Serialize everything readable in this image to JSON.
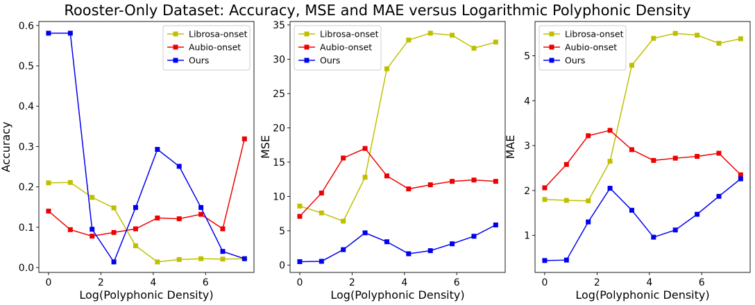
{
  "figure_title": "Rooster-Only Dataset: Accuracy, MSE and MAE versus Logarithmic Polyphonic Density",
  "colors": {
    "Librosa-onset": "#bfbf00",
    "Aubio-onset": "#ee0000",
    "Ours": "#0000ee"
  },
  "chart_data": [
    {
      "type": "line",
      "title": "",
      "xlabel": "Log(Polyphonic Density)",
      "ylabel": "Accuracy",
      "xlim": [
        -0.37,
        7.85
      ],
      "ylim": [
        -0.012,
        0.61
      ],
      "xticks": [
        0,
        2,
        4,
        6
      ],
      "yticks": [
        0.0,
        0.1,
        0.2,
        0.3,
        0.4,
        0.5,
        0.6
      ],
      "ytick_labels": [
        "0.0",
        "0.1",
        "0.2",
        "0.3",
        "0.4",
        "0.5",
        "0.6"
      ],
      "grid": false,
      "legend": "top-right",
      "x": [
        0,
        0.832,
        1.664,
        2.496,
        3.328,
        4.16,
        4.992,
        5.824,
        6.656,
        7.488
      ],
      "series": [
        {
          "name": "Librosa-onset",
          "values": [
            0.21,
            0.211,
            0.174,
            0.148,
            0.054,
            0.014,
            0.02,
            0.022,
            0.021,
            0.022
          ]
        },
        {
          "name": "Aubio-onset",
          "values": [
            0.14,
            0.094,
            0.078,
            0.087,
            0.096,
            0.123,
            0.121,
            0.132,
            0.096,
            0.319
          ]
        },
        {
          "name": "Ours",
          "values": [
            0.581,
            0.581,
            0.095,
            0.014,
            0.149,
            0.293,
            0.251,
            0.149,
            0.04,
            0.022
          ]
        }
      ]
    },
    {
      "type": "line",
      "title": "",
      "xlabel": "Log(Polyphonic Density)",
      "ylabel": "MSE",
      "xlim": [
        -0.37,
        7.85
      ],
      "ylim": [
        -1.07,
        35.5
      ],
      "xticks": [
        0,
        2,
        4,
        6
      ],
      "yticks": [
        0,
        5,
        10,
        15,
        20,
        25,
        30,
        35
      ],
      "ytick_labels": [
        "0",
        "5",
        "10",
        "15",
        "20",
        "25",
        "30",
        "35"
      ],
      "grid": false,
      "legend": "top-left",
      "x": [
        0,
        0.832,
        1.664,
        2.496,
        3.328,
        4.16,
        4.992,
        5.824,
        6.656,
        7.488
      ],
      "series": [
        {
          "name": "Librosa-onset",
          "values": [
            8.6,
            7.6,
            6.4,
            12.8,
            28.6,
            32.8,
            33.8,
            33.5,
            31.6,
            32.5
          ]
        },
        {
          "name": "Aubio-onset",
          "values": [
            7.1,
            10.5,
            15.6,
            17.0,
            13.0,
            11.1,
            11.7,
            12.2,
            12.4,
            12.2
          ]
        },
        {
          "name": "Ours",
          "values": [
            0.5,
            0.55,
            2.25,
            4.7,
            3.4,
            1.65,
            2.1,
            3.1,
            4.2,
            5.85
          ]
        }
      ]
    },
    {
      "type": "line",
      "title": "",
      "xlabel": "Log(Polyphonic Density)",
      "ylabel": "MAE",
      "xlim": [
        -0.37,
        7.85
      ],
      "ylim": [
        0.175,
        5.765
      ],
      "xticks": [
        0,
        2,
        4,
        6
      ],
      "yticks": [
        1,
        2,
        3,
        4,
        5
      ],
      "ytick_labels": [
        "1",
        "2",
        "3",
        "4",
        "5"
      ],
      "grid": false,
      "legend": "top-left",
      "x": [
        0,
        0.832,
        1.664,
        2.496,
        3.328,
        4.16,
        4.992,
        5.824,
        6.656,
        7.488
      ],
      "series": [
        {
          "name": "Librosa-onset",
          "values": [
            1.8,
            1.78,
            1.77,
            2.65,
            4.79,
            5.39,
            5.5,
            5.46,
            5.28,
            5.38
          ]
        },
        {
          "name": "Aubio-onset",
          "values": [
            2.06,
            2.58,
            3.22,
            3.34,
            2.91,
            2.67,
            2.72,
            2.76,
            2.83,
            2.35
          ]
        },
        {
          "name": "Ours",
          "values": [
            0.44,
            0.45,
            1.3,
            2.05,
            1.56,
            0.96,
            1.12,
            1.47,
            1.87,
            2.26
          ]
        }
      ]
    }
  ]
}
